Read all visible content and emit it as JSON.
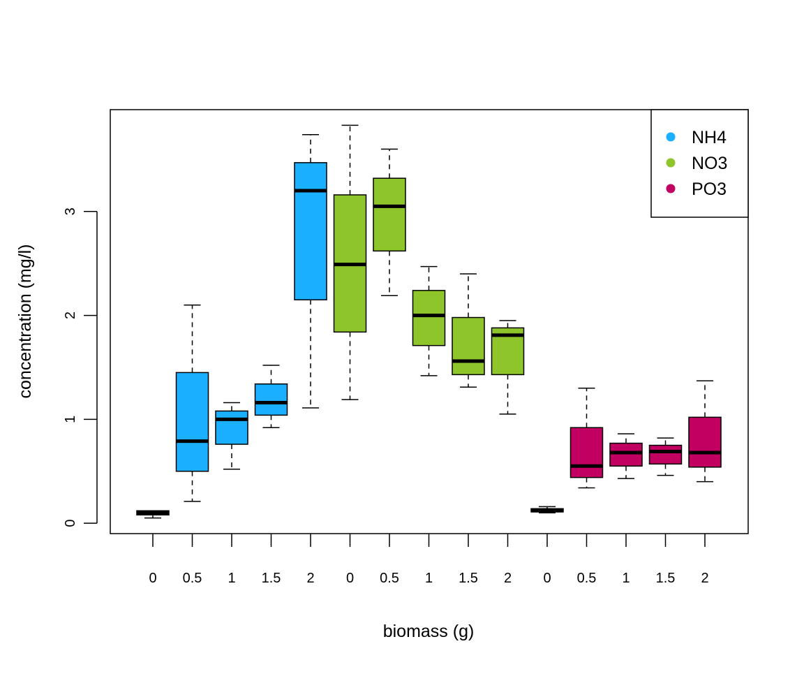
{
  "chart_data": {
    "type": "box",
    "xlabel": "biomass (g)",
    "ylabel": "concentration (mg/l)",
    "ylim": [
      -0.1,
      3.98
    ],
    "yticks": [
      0,
      1,
      2,
      3
    ],
    "grid": false,
    "legend_position": "top-right",
    "series": [
      {
        "name": "NH4",
        "color": "#1AB0FF",
        "categories": [
          "0",
          "0.5",
          "1",
          "1.5",
          "2"
        ],
        "boxes": [
          {
            "whisker_low": 0.05,
            "q1": 0.08,
            "median": 0.1,
            "q3": 0.12,
            "whisker_high": 0.12
          },
          {
            "whisker_low": 0.21,
            "q1": 0.5,
            "median": 0.79,
            "q3": 1.45,
            "whisker_high": 2.1
          },
          {
            "whisker_low": 0.52,
            "q1": 0.76,
            "median": 1.0,
            "q3": 1.08,
            "whisker_high": 1.16
          },
          {
            "whisker_low": 0.92,
            "q1": 1.04,
            "median": 1.16,
            "q3": 1.34,
            "whisker_high": 1.52
          },
          {
            "whisker_low": 1.11,
            "q1": 2.15,
            "median": 3.2,
            "q3": 3.47,
            "whisker_high": 3.74
          }
        ]
      },
      {
        "name": "NO3",
        "color": "#8DC52B",
        "categories": [
          "0",
          "0.5",
          "1",
          "1.5",
          "2"
        ],
        "boxes": [
          {
            "whisker_low": 1.19,
            "q1": 1.84,
            "median": 2.49,
            "q3": 3.16,
            "whisker_high": 3.83
          },
          {
            "whisker_low": 2.19,
            "q1": 2.62,
            "median": 3.05,
            "q3": 3.32,
            "whisker_high": 3.6
          },
          {
            "whisker_low": 1.42,
            "q1": 1.71,
            "median": 2.0,
            "q3": 2.24,
            "whisker_high": 2.47
          },
          {
            "whisker_low": 1.31,
            "q1": 1.43,
            "median": 1.56,
            "q3": 1.98,
            "whisker_high": 2.4
          },
          {
            "whisker_low": 1.05,
            "q1": 1.43,
            "median": 1.81,
            "q3": 1.88,
            "whisker_high": 1.95
          }
        ]
      },
      {
        "name": "PO3",
        "color": "#C10062",
        "categories": [
          "0",
          "0.5",
          "1",
          "1.5",
          "2"
        ],
        "boxes": [
          {
            "whisker_low": 0.1,
            "q1": 0.11,
            "median": 0.12,
            "q3": 0.14,
            "whisker_high": 0.16
          },
          {
            "whisker_low": 0.34,
            "q1": 0.44,
            "median": 0.55,
            "q3": 0.92,
            "whisker_high": 1.3
          },
          {
            "whisker_low": 0.43,
            "q1": 0.55,
            "median": 0.68,
            "q3": 0.77,
            "whisker_high": 0.86
          },
          {
            "whisker_low": 0.46,
            "q1": 0.57,
            "median": 0.69,
            "q3": 0.75,
            "whisker_high": 0.82
          },
          {
            "whisker_low": 0.4,
            "q1": 0.54,
            "median": 0.68,
            "q3": 1.02,
            "whisker_high": 1.37
          }
        ]
      }
    ]
  }
}
